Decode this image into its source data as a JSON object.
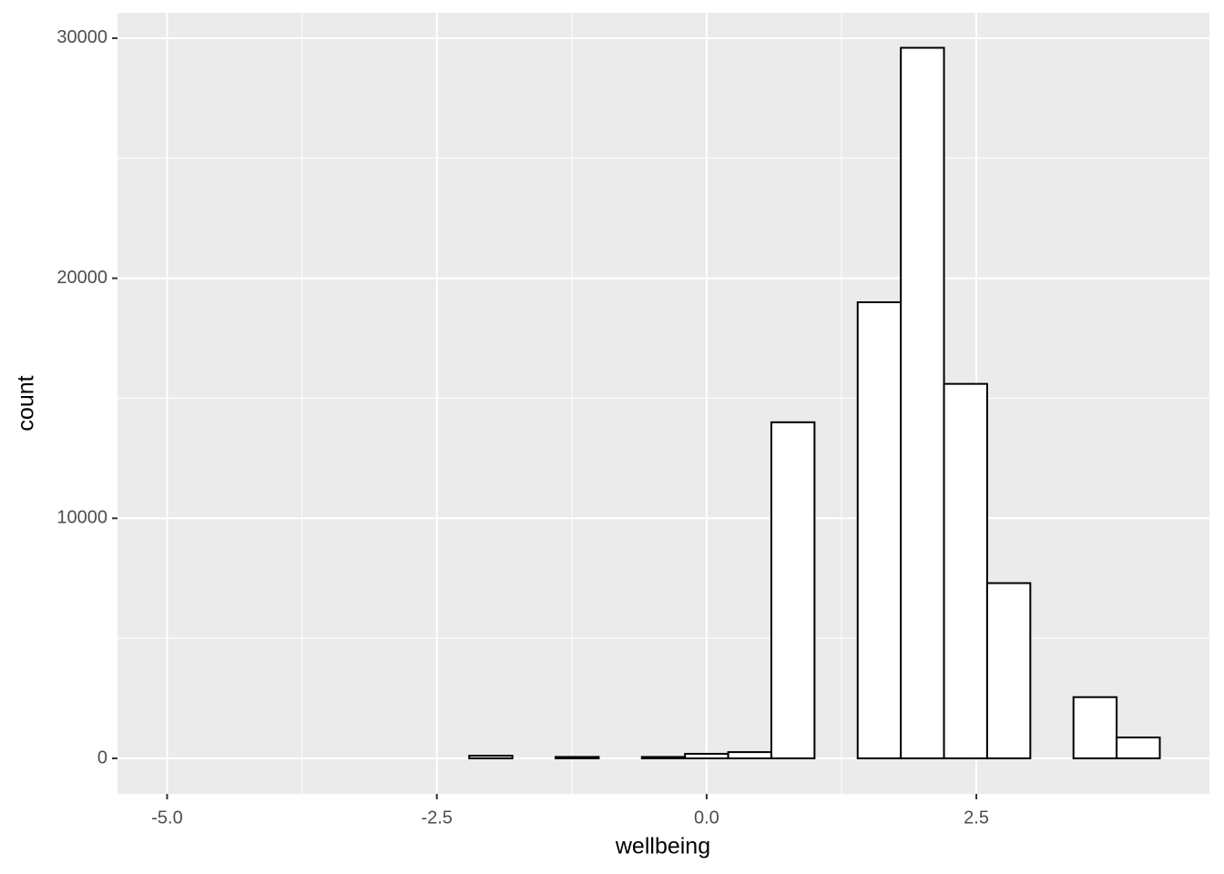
{
  "chart_data": {
    "type": "histogram",
    "x_label": "wellbeing",
    "y_label": "count",
    "bins": [
      -5.0,
      -4.6,
      -4.2,
      -3.8,
      -3.4,
      -3.0,
      -2.6,
      -2.2,
      -1.8,
      -1.4,
      -1.0,
      -0.6,
      -0.2,
      0.2,
      0.6,
      1.0,
      1.4,
      1.8,
      2.2,
      2.6,
      3.0,
      3.4,
      3.8,
      4.2
    ],
    "values": [
      0,
      0,
      0,
      0,
      0,
      0,
      0,
      110,
      0,
      60,
      0,
      60,
      190,
      260,
      14000,
      0,
      19000,
      29600,
      15600,
      7300,
      0,
      2550,
      870
    ],
    "color": "#ffffff",
    "edge_color": "#000000",
    "xlim": [
      -5.46,
      4.66
    ],
    "ylim": [
      -1480,
      31060
    ],
    "xticks": [
      {
        "value": -5,
        "label": "-5.0"
      },
      -2.5,
      {
        "value": 0,
        "label": "0.0"
      },
      2.5
    ],
    "yticks": [
      0,
      10000,
      20000,
      30000
    ],
    "grid": true
  }
}
